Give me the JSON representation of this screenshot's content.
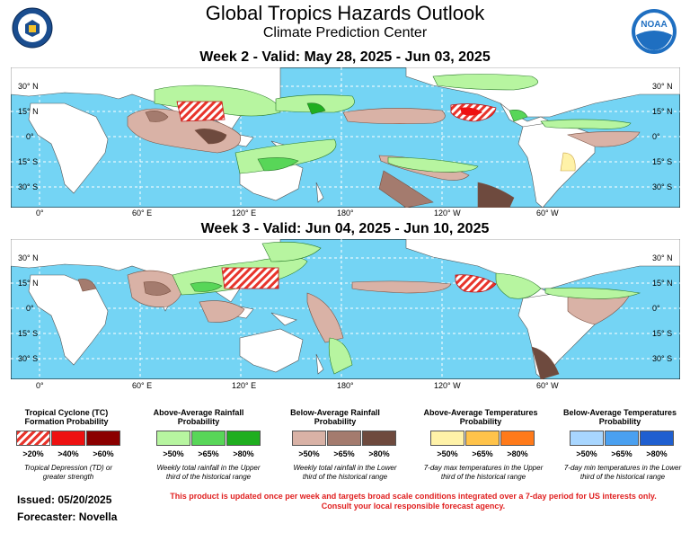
{
  "header": {
    "title": "Global Tropics Hazards Outlook",
    "subtitle": "Climate Prediction Center",
    "noaa_text": "NOAA"
  },
  "week2": {
    "title": "Week 2 - Valid: May 28, 2025 - Jun 03, 2025"
  },
  "week3": {
    "title": "Week 3 - Valid: Jun 04, 2025 - Jun 10, 2025"
  },
  "axes": {
    "lat_left": [
      "30° N",
      "15° N",
      "0°",
      "15° S",
      "30° S"
    ],
    "lat_right": [
      "30° N",
      "15° N",
      "0°",
      "15° S",
      "30° S"
    ],
    "lon": [
      "0°",
      "60° E",
      "120° E",
      "180°",
      "120° W",
      "60° W"
    ]
  },
  "legend": {
    "tc": {
      "title": "Tropical Cyclone (TC) Formation Probability",
      "labels": [
        ">20%",
        ">40%",
        ">60%"
      ],
      "colors": [
        "#e8342b",
        "#ee1111",
        "#8b0000"
      ],
      "note": "Tropical Depression (TD) or greater strength"
    },
    "rain_above": {
      "title": "Above-Average Rainfall Probability",
      "labels": [
        ">50%",
        ">65%",
        ">80%"
      ],
      "colors": [
        "#b7f5a0",
        "#58d658",
        "#1fae1f"
      ],
      "note": "Weekly total rainfall in the Upper third of the historical range"
    },
    "rain_below": {
      "title": "Below-Average Rainfall Probability",
      "labels": [
        ">50%",
        ">65%",
        ">80%"
      ],
      "colors": [
        "#d9b2a6",
        "#a47b6e",
        "#6e4a3e"
      ],
      "note": "Weekly total rainfall in the Lower third of the historical range"
    },
    "temp_above": {
      "title": "Above-Average Temperatures Probability",
      "labels": [
        ">50%",
        ">65%",
        ">80%"
      ],
      "colors": [
        "#fff2a8",
        "#ffc34a",
        "#ff7a1a"
      ],
      "note": "7-day max temperatures in the Upper third of the historical range"
    },
    "temp_below": {
      "title": "Below-Average Temperatures Probability",
      "labels": [
        ">50%",
        ">65%",
        ">80%"
      ],
      "colors": [
        "#a8d6ff",
        "#4aa0f0",
        "#1f5fd0"
      ],
      "note": "7-day min temperatures in the Lower third of the historical range"
    }
  },
  "footer": {
    "issued": "Issued: 05/20/2025",
    "forecaster": "Forecaster: Novella",
    "notice1": "This product is updated once per week and targets broad scale conditions integrated over a 7-day period for US interests only.",
    "notice2": "Consult your local responsible forecast agency."
  },
  "colors": {
    "ocean": "#74d4f4",
    "land": "#ffffff",
    "notice": "#e02020"
  }
}
